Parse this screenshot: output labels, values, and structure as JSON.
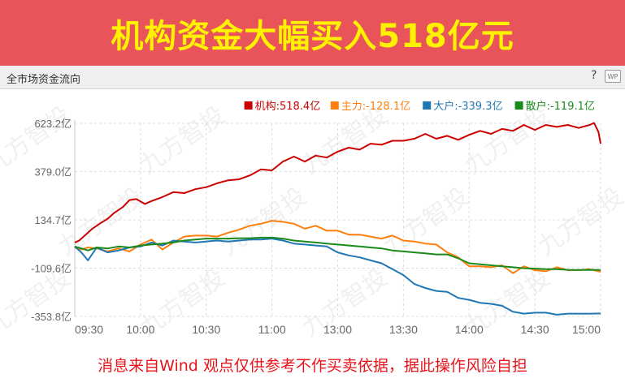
{
  "banner": {
    "title": "机构资金大幅买入518亿元"
  },
  "panel": {
    "title": "全市场资金流向",
    "help": "?"
  },
  "footer": {
    "disclaimer": "消息来自Wind  观点仅供参考不作买卖依据，据此操作风险自担"
  },
  "watermark": "九方智投",
  "chart_data": {
    "type": "line",
    "title": "",
    "xlabel": "",
    "ylabel": "",
    "unit": "亿",
    "y_ticks": [
      "623.2亿",
      "379.0亿",
      "134.7亿",
      "-109.6亿",
      "-353.8亿"
    ],
    "y_tick_values": [
      623.2,
      379.0,
      134.7,
      -109.6,
      -353.8
    ],
    "ylim": [
      -353.8,
      623.2
    ],
    "x_ticks": [
      "09:30",
      "10:00",
      "10:30",
      "11:00",
      "13:00",
      "13:30",
      "14:00",
      "14:30",
      "15:00"
    ],
    "x_tick_minutes": [
      0,
      30,
      60,
      90,
      120,
      150,
      180,
      210,
      240
    ],
    "xlim": [
      0,
      240
    ],
    "legend_position": "top-right",
    "grid": true,
    "series": [
      {
        "name": "机构",
        "latest": "518.4亿",
        "color": "#cc0000",
        "x": [
          0,
          2,
          5,
          8,
          12,
          15,
          18,
          22,
          25,
          28,
          32,
          35,
          40,
          45,
          50,
          55,
          60,
          65,
          70,
          75,
          80,
          85,
          90,
          95,
          100,
          105,
          110,
          115,
          120,
          125,
          130,
          135,
          140,
          145,
          150,
          155,
          160,
          165,
          170,
          175,
          180,
          185,
          190,
          195,
          200,
          205,
          210,
          215,
          220,
          225,
          230,
          235,
          237,
          239,
          240
        ],
        "values": [
          20,
          30,
          60,
          90,
          120,
          140,
          170,
          200,
          235,
          240,
          215,
          230,
          250,
          275,
          270,
          290,
          300,
          320,
          335,
          340,
          360,
          390,
          385,
          430,
          455,
          430,
          460,
          450,
          480,
          500,
          490,
          520,
          515,
          535,
          535,
          545,
          570,
          545,
          560,
          540,
          565,
          585,
          570,
          595,
          585,
          615,
          590,
          615,
          605,
          615,
          600,
          615,
          625,
          580,
          520
        ]
      },
      {
        "name": "主力",
        "latest": "-128.1亿",
        "color": "#ff7f0e",
        "x": [
          0,
          3,
          6,
          10,
          15,
          20,
          25,
          30,
          35,
          40,
          45,
          50,
          55,
          60,
          65,
          70,
          75,
          80,
          85,
          90,
          95,
          100,
          105,
          110,
          115,
          120,
          125,
          130,
          135,
          140,
          145,
          150,
          155,
          160,
          165,
          170,
          175,
          180,
          185,
          190,
          195,
          200,
          205,
          210,
          215,
          220,
          225,
          230,
          235,
          240
        ],
        "values": [
          -5,
          -15,
          -5,
          -10,
          -25,
          -10,
          -25,
          10,
          35,
          -15,
          20,
          50,
          55,
          55,
          50,
          70,
          85,
          105,
          115,
          130,
          125,
          115,
          90,
          105,
          80,
          80,
          60,
          60,
          50,
          40,
          55,
          30,
          25,
          15,
          10,
          -30,
          -55,
          -100,
          -100,
          -105,
          -95,
          -135,
          -100,
          -120,
          -125,
          -105,
          -120,
          -120,
          -115,
          -128
        ]
      },
      {
        "name": "大户",
        "latest": "-339.3亿",
        "color": "#1f77b4",
        "x": [
          0,
          3,
          6,
          10,
          15,
          20,
          25,
          30,
          35,
          40,
          45,
          50,
          55,
          60,
          65,
          70,
          75,
          80,
          85,
          90,
          95,
          100,
          105,
          110,
          115,
          120,
          125,
          130,
          135,
          140,
          145,
          150,
          155,
          160,
          165,
          170,
          175,
          180,
          185,
          190,
          195,
          200,
          205,
          210,
          215,
          220,
          225,
          230,
          235,
          240
        ],
        "values": [
          0,
          -30,
          -70,
          -5,
          -30,
          -20,
          -5,
          0,
          20,
          5,
          30,
          25,
          20,
          25,
          30,
          25,
          30,
          35,
          35,
          40,
          30,
          15,
          10,
          5,
          0,
          -30,
          -45,
          -55,
          -70,
          -85,
          -115,
          -145,
          -190,
          -210,
          -225,
          -230,
          -260,
          -270,
          -285,
          -290,
          -300,
          -330,
          -340,
          -335,
          -335,
          -345,
          -340,
          -340,
          -340,
          -339
        ]
      },
      {
        "name": "散户",
        "latest": "-119.1亿",
        "color": "#1a8a1a",
        "x": [
          0,
          3,
          6,
          10,
          15,
          20,
          25,
          30,
          35,
          40,
          45,
          50,
          55,
          60,
          65,
          70,
          75,
          80,
          85,
          90,
          95,
          100,
          105,
          110,
          115,
          120,
          125,
          130,
          135,
          140,
          145,
          150,
          155,
          160,
          165,
          170,
          175,
          180,
          185,
          190,
          195,
          200,
          205,
          210,
          215,
          220,
          225,
          230,
          235,
          240
        ],
        "values": [
          0,
          -10,
          -20,
          -5,
          -10,
          0,
          -5,
          5,
          10,
          15,
          20,
          30,
          35,
          40,
          40,
          40,
          42,
          42,
          45,
          45,
          40,
          30,
          25,
          20,
          15,
          10,
          5,
          0,
          -5,
          -10,
          -20,
          -25,
          -30,
          -35,
          -40,
          -40,
          -60,
          -85,
          -90,
          -95,
          -100,
          -105,
          -110,
          -112,
          -115,
          -115,
          -118,
          -119,
          -118,
          -119
        ]
      }
    ]
  }
}
